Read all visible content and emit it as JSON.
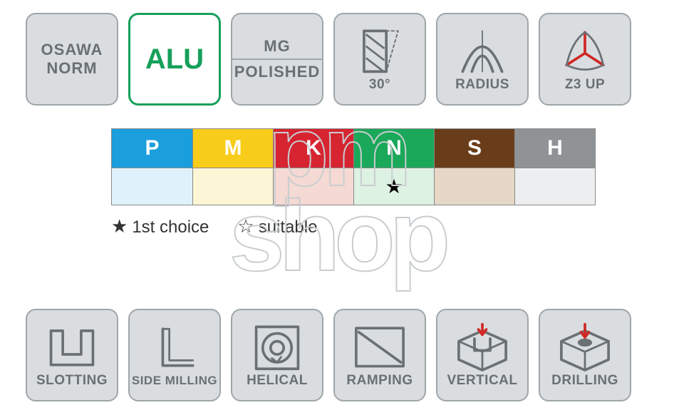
{
  "top_tiles": [
    {
      "kind": "text2",
      "style": "grey",
      "line1": "OSAWA",
      "line2": "NORM"
    },
    {
      "kind": "big",
      "style": "green",
      "big": "ALU"
    },
    {
      "kind": "split",
      "style": "grey",
      "line1": "MG",
      "line2": "POLISHED"
    },
    {
      "kind": "icon",
      "style": "grey",
      "icon": "helix30",
      "caption": "30°"
    },
    {
      "kind": "icon",
      "style": "grey",
      "icon": "radius",
      "caption": "RADIUS"
    },
    {
      "kind": "icon",
      "style": "grey",
      "icon": "z3up",
      "caption": "Z3 UP"
    }
  ],
  "materials": {
    "columns": [
      {
        "code": "P",
        "head_color": "#1a9fdc",
        "cell_color": "#dff2fb",
        "mark": ""
      },
      {
        "code": "M",
        "head_color": "#f8cc1a",
        "cell_color": "#fdf6d6",
        "mark": ""
      },
      {
        "code": "K",
        "head_color": "#d62431",
        "cell_color": "#f5d9d3",
        "mark": ""
      },
      {
        "code": "N",
        "head_color": "#1aa85a",
        "cell_color": "#def2e4",
        "mark": "★"
      },
      {
        "code": "S",
        "head_color": "#6a3d1a",
        "cell_color": "#e6d7c6",
        "mark": ""
      },
      {
        "code": "H",
        "head_color": "#8f9396",
        "cell_color": "#eceeef",
        "mark": ""
      }
    ],
    "legend": [
      {
        "symbol": "★",
        "label": "1st choice"
      },
      {
        "symbol": "☆",
        "label": "suitable"
      }
    ]
  },
  "bottom_tiles": [
    {
      "icon": "slotting",
      "caption": "SLOTTING"
    },
    {
      "icon": "sidemilling",
      "caption": "SIDE MILLING",
      "small": true
    },
    {
      "icon": "helical",
      "caption": "HELICAL"
    },
    {
      "icon": "ramping",
      "caption": "RAMPING"
    },
    {
      "icon": "vertical",
      "caption": "VERTICAL"
    },
    {
      "icon": "drilling",
      "caption": "DRILLING"
    }
  ],
  "watermark": "pm\nshop",
  "colors": {
    "tile_bg": "#d9dde0",
    "tile_border": "#9fa6aa",
    "tile_text": "#6a7074",
    "accent_red": "#d02825",
    "icon_stroke": "#6a7074"
  }
}
